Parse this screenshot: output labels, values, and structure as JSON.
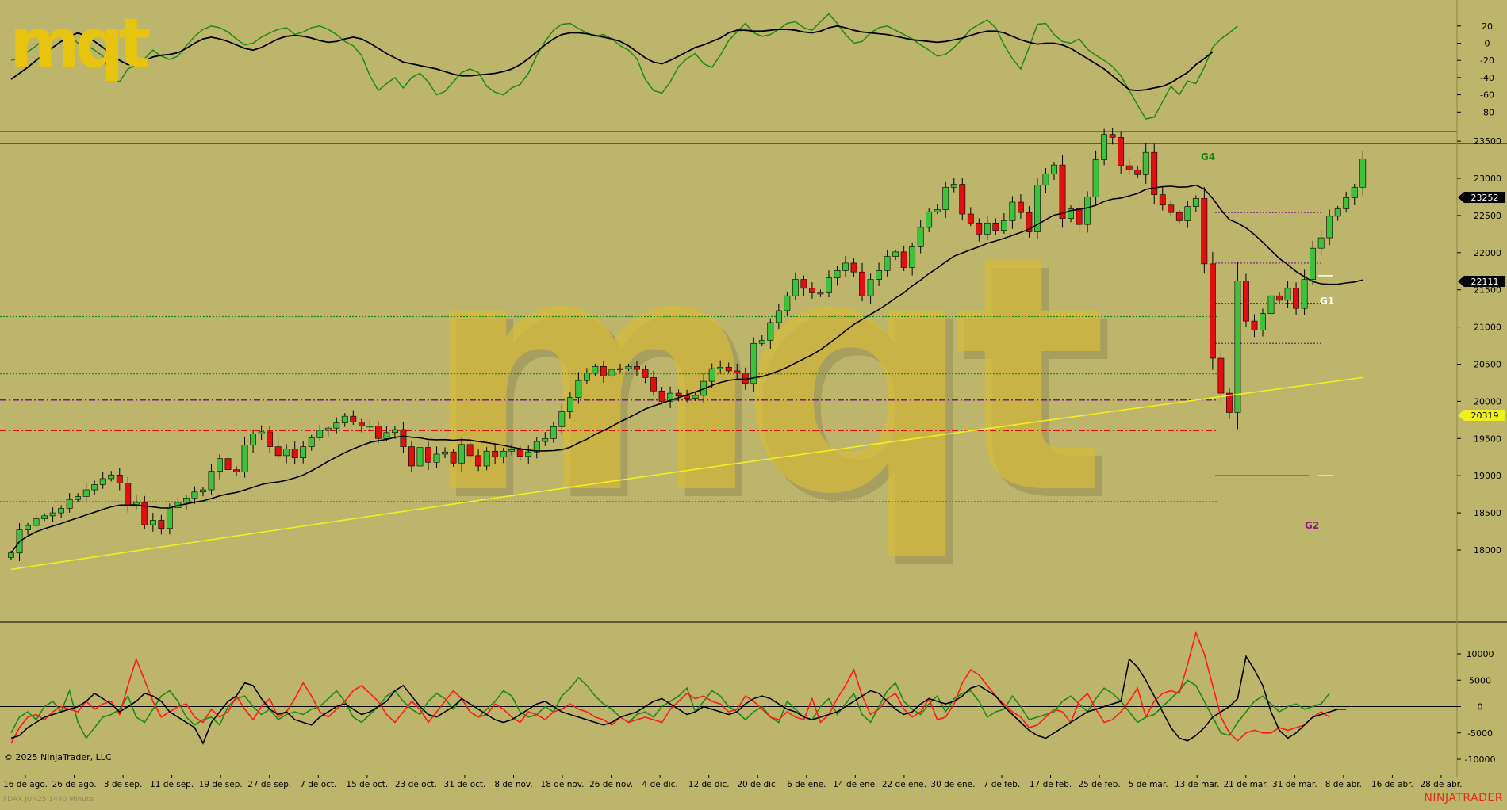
{
  "app": {
    "logo_text": "mqt",
    "watermark_text": "mqt",
    "copyright": "© 2025 NinjaTrader, LLC",
    "instrument_label": "FDAX JUN25 1440 Minute",
    "brand": "NINJATRADER"
  },
  "colors": {
    "background": "#bdb56b",
    "bull_candle": "#3ec23e",
    "bear_candle": "#e01010",
    "sma_fast": "#000000",
    "sma_slow": "#f0ef20",
    "osc_green": "#1e8a12",
    "osc_red": "#ff1a1a",
    "level_green": "#138a13",
    "level_purple": "#7a1a8a",
    "level_red": "#e01010",
    "brand_red": "#e62a1a",
    "logo_yellow": "#e6c410"
  },
  "chart_data": [
    {
      "panel": "oscillator_top",
      "type": "line",
      "yticks": [
        "20",
        "0",
        "-20",
        "-40",
        "-60",
        "-80"
      ],
      "ylim": [
        -88,
        30
      ],
      "series": [
        {
          "values": [
            -20,
            -18,
            -10,
            -3,
            5,
            11,
            15,
            10,
            0,
            -2,
            -8,
            -15,
            -38,
            -45,
            -30,
            -25,
            -18,
            -8,
            -15,
            -19,
            -15,
            -3,
            8,
            16,
            20,
            18,
            13,
            5,
            -2,
            0,
            7,
            12,
            16,
            18,
            10,
            13,
            18,
            20,
            16,
            10,
            2,
            -3,
            -14,
            -38,
            -55,
            -47,
            -40,
            -52,
            -40,
            -35,
            -45,
            -60,
            -56,
            -45,
            -34,
            -30,
            -34,
            -50,
            -57,
            -60,
            -52,
            -48,
            -35,
            -14,
            2,
            15,
            22,
            23,
            17,
            12,
            8,
            10,
            5,
            -3,
            -8,
            -18,
            -42,
            -55,
            -58,
            -45,
            -27,
            -18,
            -12,
            -24,
            -28,
            -14,
            3,
            13,
            23,
            12,
            8,
            10,
            16,
            23,
            25,
            18,
            15,
            25,
            34,
            23,
            10,
            0,
            2,
            12,
            18,
            20,
            15,
            10,
            5,
            -2,
            -8,
            -15,
            -13,
            -5,
            5,
            16,
            22,
            27,
            18,
            -2,
            -18,
            -30,
            -5,
            22,
            23,
            10,
            2,
            0,
            5,
            -7,
            -14,
            -20,
            -27,
            -38,
            -55,
            -72,
            -88,
            -86,
            -68,
            -50,
            -60,
            -44,
            -47,
            -28,
            -5,
            5,
            12,
            20
          ]
        },
        {
          "values": [
            -42,
            -35,
            -28,
            -20,
            -12,
            -5,
            2,
            8,
            12,
            8,
            2,
            -5,
            -12,
            -20,
            -25,
            -24,
            -20,
            -16,
            -14,
            -13,
            -11,
            -6,
            0,
            5,
            7,
            5,
            2,
            -2,
            -6,
            -8,
            -5,
            0,
            5,
            8,
            9,
            8,
            6,
            3,
            1,
            2,
            5,
            7,
            5,
            0,
            -6,
            -12,
            -17,
            -22,
            -24,
            -26,
            -28,
            -30,
            -33,
            -36,
            -38,
            -38,
            -37,
            -36,
            -35,
            -33,
            -30,
            -25,
            -18,
            -10,
            -2,
            5,
            10,
            12,
            12,
            11,
            9,
            7,
            5,
            2,
            -3,
            -10,
            -17,
            -22,
            -24,
            -20,
            -15,
            -10,
            -5,
            -2,
            2,
            6,
            12,
            15,
            15,
            14,
            14,
            15,
            16,
            16,
            15,
            13,
            12,
            14,
            18,
            20,
            18,
            15,
            13,
            12,
            11,
            10,
            8,
            6,
            4,
            3,
            2,
            1,
            2,
            4,
            6,
            9,
            12,
            14,
            14,
            12,
            8,
            4,
            1,
            -1,
            0,
            0,
            -2,
            -6,
            -12,
            -18,
            -24,
            -30,
            -38,
            -46,
            -54,
            -55,
            -54,
            -52,
            -50,
            -46,
            -40,
            -34,
            -25,
            -18,
            -10
          ]
        }
      ]
    },
    {
      "panel": "price",
      "type": "candlestick",
      "x_labels": [
        "16 de ago.",
        "26 de ago.",
        "3 de sep.",
        "11 de sep.",
        "19 de sep.",
        "27 de sep.",
        "7 de oct.",
        "15 de oct.",
        "23 de oct.",
        "31 de oct.",
        "8 de nov.",
        "18 de nov.",
        "26 de nov.",
        "4 de dic.",
        "12 de dic.",
        "20 de dic.",
        "6 de ene.",
        "14 de ene.",
        "22 de ene.",
        "30 de ene.",
        "7 de feb.",
        "17 de feb.",
        "25 de feb.",
        "5 de mar.",
        "13 de mar.",
        "21 de mar.",
        "31 de mar.",
        "8 de abr.",
        "16 de abr.",
        "28 de abr."
      ],
      "yticks": [
        "23500",
        "23000",
        "22500",
        "22000",
        "21500",
        "21000",
        "20500",
        "20000",
        "19500",
        "19000",
        "18500",
        "18000"
      ],
      "ylim": [
        17550,
        23900
      ],
      "closes": [
        17960,
        18270,
        18330,
        18420,
        18460,
        18500,
        18560,
        18680,
        18720,
        18810,
        18880,
        18960,
        19010,
        18900,
        18600,
        18640,
        18340,
        18400,
        18290,
        18570,
        18640,
        18700,
        18780,
        18810,
        19060,
        19230,
        19080,
        19050,
        19410,
        19560,
        19590,
        19390,
        19270,
        19360,
        19240,
        19390,
        19510,
        19610,
        19640,
        19710,
        19800,
        19720,
        19670,
        19670,
        19500,
        19580,
        19620,
        19390,
        19130,
        19380,
        19180,
        19290,
        19320,
        19170,
        19420,
        19270,
        19130,
        19330,
        19250,
        19330,
        19350,
        19260,
        19320,
        19460,
        19500,
        19660,
        19860,
        20050,
        20280,
        20380,
        20470,
        20340,
        20430,
        20440,
        20470,
        20430,
        20320,
        20140,
        20000,
        20110,
        20070,
        20040,
        20080,
        20270,
        20440,
        20460,
        20410,
        20380,
        20240,
        20780,
        20820,
        21060,
        21220,
        21420,
        21640,
        21520,
        21460,
        21460,
        21660,
        21760,
        21860,
        21740,
        21420,
        21640,
        21760,
        21950,
        22010,
        21800,
        22080,
        22340,
        22550,
        22580,
        22880,
        22920,
        22520,
        22400,
        22250,
        22400,
        22300,
        22430,
        22680,
        22540,
        22280,
        22910,
        23060,
        23180,
        22460,
        22590,
        22380,
        22750,
        23250,
        23590,
        23550,
        23170,
        23110,
        23050,
        23350,
        22780,
        22640,
        22540,
        22430,
        22620,
        22730,
        21850,
        20580,
        20110,
        19850,
        21620,
        21080,
        20960,
        21180,
        21420,
        21360,
        21520,
        21250,
        21640,
        22060,
        22200,
        22490,
        22590,
        22740,
        22880,
        23260
      ],
      "indicators": [
        {
          "name": "sma_fast",
          "last_value": "22111",
          "current_label": "22111"
        },
        {
          "name": "sma_slow",
          "current_label": "20319"
        }
      ],
      "last_price": "23252",
      "annotations": [
        "G4",
        "G1",
        "G2"
      ],
      "levels": [
        {
          "price": 23630,
          "color": "green",
          "style": "solid"
        },
        {
          "price": 21140,
          "color": "green",
          "style": "dotted"
        },
        {
          "price": 20370,
          "color": "green",
          "style": "dotted"
        },
        {
          "price": 20020,
          "color": "purple",
          "style": "dash-dot"
        },
        {
          "price": 19610,
          "color": "red",
          "style": "dash-dot"
        },
        {
          "price": 18650,
          "color": "green",
          "style": "dotted"
        },
        {
          "price": 22540,
          "color": "purple",
          "style": "dotted"
        },
        {
          "price": 21860,
          "color": "purple",
          "style": "dotted"
        },
        {
          "price": 21320,
          "color": "purple",
          "style": "dotted"
        },
        {
          "price": 20780,
          "color": "purple",
          "style": "dotted"
        },
        {
          "price": 19000,
          "color": "purple",
          "style": "solid"
        }
      ]
    },
    {
      "panel": "oscillator_bottom",
      "type": "line",
      "yticks": [
        "10000",
        "5000",
        "0",
        "-5000",
        "-10000"
      ],
      "ylim": [
        -10500,
        15500
      ],
      "series": [
        {
          "values": [
            -5000,
            -2000,
            -1000,
            -2500,
            0,
            1000,
            -1000,
            3000,
            -3000,
            -6000,
            -4000,
            -2000,
            -1500,
            -500,
            2000,
            -2000,
            -3000,
            -500,
            2000,
            3000,
            1000,
            -2000,
            -3500,
            -2500,
            -2000,
            -3500,
            0,
            1500,
            2000,
            0,
            -1500,
            -500,
            -2500,
            -1500,
            -1000,
            -1500,
            -500,
            0,
            1500,
            3000,
            1000,
            -2000,
            -3000,
            -1500,
            0,
            2000,
            3000,
            1000,
            -500,
            -1500,
            1000,
            2500,
            1500,
            -500,
            1500,
            -1000,
            -2000,
            -500,
            1000,
            3000,
            2000,
            -1000,
            -2000,
            -1500,
            0,
            -1000,
            2000,
            3500,
            5500,
            4000,
            2000,
            500,
            -500,
            -2000,
            -3000,
            -1500,
            -1000,
            -2000,
            0,
            1000,
            2000,
            3500,
            -1000,
            1000,
            3000,
            2000,
            0,
            -1000,
            -2500,
            -1000,
            0,
            -2000,
            -3000,
            1000,
            -500,
            -2000,
            -2500,
            0,
            1500,
            -1500,
            500,
            2500,
            -1500,
            -3000,
            0,
            3000,
            4500,
            1000,
            -500,
            -1500,
            500,
            2000,
            -1000,
            1500,
            2500,
            3000,
            1000,
            -2000,
            -1000,
            -500,
            2000,
            0,
            -2500,
            -2000,
            -1500,
            -1000,
            1000,
            2000,
            500,
            -1000,
            1500,
            3500,
            2500,
            1000,
            -1000,
            -3000,
            -2000,
            -1500,
            0,
            1500,
            3000,
            5000,
            4000,
            1000,
            -2000,
            -5000,
            -5500,
            -3000,
            -1000,
            1000,
            2000,
            500,
            -1000,
            0,
            500,
            -500,
            0,
            500,
            2500
          ]
        },
        {
          "values": [
            -7000,
            -4000,
            -2000,
            -1500,
            -2500,
            -1000,
            0,
            -500,
            -1000,
            1000,
            -500,
            500,
            1000,
            -1500,
            4000,
            9000,
            5000,
            1000,
            -2000,
            -1000,
            0,
            500,
            -2000,
            -3000,
            -500,
            -2000,
            -1000,
            2000,
            -500,
            -2500,
            0,
            1500,
            -2000,
            -1000,
            1500,
            4500,
            2000,
            -1000,
            -2000,
            -500,
            1000,
            3000,
            4000,
            2500,
            1000,
            -1500,
            -3000,
            -1000,
            1000,
            -500,
            -3000,
            -1000,
            1000,
            3000,
            1500,
            -1000,
            -2000,
            -1500,
            500,
            -500,
            -2000,
            -3000,
            -1000,
            -1500,
            -2500,
            -1000,
            -500,
            500,
            -500,
            -1000,
            -2000,
            -2500,
            -3500,
            -2000,
            -3000,
            -2500,
            -2000,
            -2500,
            -3000,
            -500,
            1000,
            2500,
            1500,
            2000,
            1000,
            500,
            -1000,
            -500,
            2000,
            1000,
            -500,
            -2000,
            -2500,
            -1000,
            -2000,
            -2500,
            1500,
            -3000,
            -1500,
            1500,
            4000,
            7000,
            2000,
            -1500,
            -500,
            1500,
            2500,
            -500,
            -2000,
            -1000,
            1500,
            -2500,
            -2000,
            500,
            4500,
            7000,
            6000,
            4000,
            2000,
            500,
            -1000,
            -2000,
            -4000,
            -3500,
            -2000,
            -500,
            -1000,
            -3000,
            1000,
            2500,
            -500,
            -3000,
            -2500,
            -1000,
            1000,
            3500,
            -2000,
            1000,
            2500,
            3000,
            2500,
            8000,
            14000,
            10000,
            4000,
            -2000,
            -5000,
            -6500,
            -5000,
            -4500,
            -5000,
            -5000,
            -4000,
            -4500,
            -4000,
            -3500,
            -2000,
            -1000,
            -2000
          ]
        },
        {
          "values": [
            -6000,
            -5500,
            -4000,
            -3000,
            -2000,
            -1500,
            -1000,
            -500,
            0,
            1000,
            2500,
            1500,
            500,
            -1000,
            0,
            1000,
            2500,
            2000,
            1000,
            -1000,
            -2000,
            -3000,
            -4000,
            -7000,
            -3000,
            -1000,
            1000,
            2000,
            4500,
            4000,
            1500,
            -500,
            -1500,
            -1000,
            -2500,
            -3000,
            -3500,
            -2000,
            -1000,
            0,
            500,
            -500,
            -1500,
            -1000,
            0,
            1000,
            3000,
            4000,
            2000,
            0,
            -1500,
            -2000,
            -1000,
            0,
            1500,
            500,
            -500,
            -1500,
            -2500,
            -3000,
            -2500,
            -1500,
            -500,
            500,
            1000,
            0,
            -1000,
            -1500,
            -2000,
            -2500,
            -3000,
            -3500,
            -3000,
            -2000,
            -1500,
            -1000,
            0,
            1000,
            1500,
            500,
            -500,
            -1500,
            -1000,
            0,
            -500,
            -1000,
            -1500,
            -1000,
            500,
            1500,
            2000,
            1500,
            500,
            -500,
            -1000,
            -2000,
            -2500,
            -2000,
            -1500,
            -1000,
            0,
            1000,
            2000,
            3000,
            2500,
            1000,
            -500,
            -1500,
            -1000,
            500,
            1500,
            1000,
            500,
            1000,
            2000,
            3500,
            4000,
            3000,
            2000,
            0,
            -1500,
            -3000,
            -4500,
            -5500,
            -6000,
            -5000,
            -4000,
            -3000,
            -2000,
            -1000,
            -500,
            0,
            500,
            1000,
            9000,
            7500,
            5000,
            2000,
            -1000,
            -4000,
            -6000,
            -6500,
            -5500,
            -4000,
            -2000,
            -1000,
            0,
            1500,
            9500,
            7000,
            4000,
            -1000,
            -4500,
            -6000,
            -5000,
            -3500,
            -2000,
            -1500,
            -1000,
            -500,
            -500
          ]
        }
      ]
    }
  ]
}
